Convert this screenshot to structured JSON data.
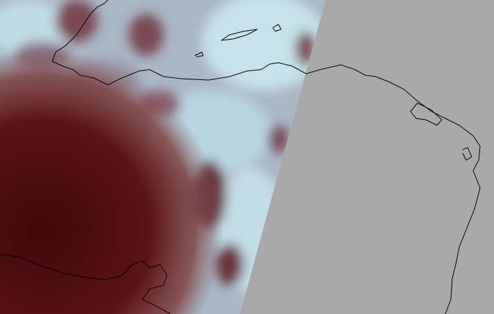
{
  "map": {
    "type": "satellite-swath",
    "colors": {
      "no_data": "#a9a9a9",
      "cloud_light": "#b9d6e0",
      "cloud_gray": "#8a8c9c",
      "cloud_brown": "#7a4a55",
      "dark_region": "#4a0c0c",
      "coastline": "#000000"
    },
    "overlays": [
      "coastline"
    ]
  }
}
